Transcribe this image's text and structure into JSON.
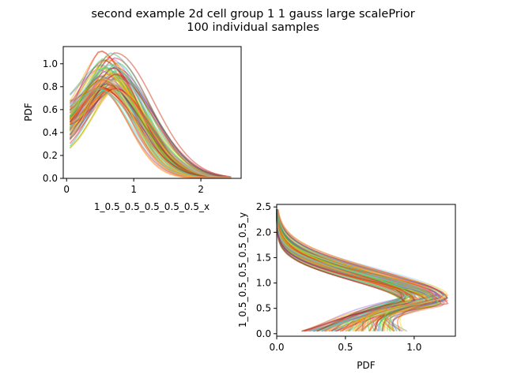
{
  "figure": {
    "title_line1": "second example 2d cell group 1 1 gauss large scalePrior",
    "title_line2": "100 individual samples"
  },
  "chart_data": [
    {
      "type": "line",
      "title": "",
      "xlabel": "1_0.5_0.5_0.5_0.5_0.5_x",
      "ylabel": "PDF",
      "xlim": [
        -0.05,
        2.6
      ],
      "ylim": [
        0.0,
        1.15
      ],
      "xticks": [
        0,
        1,
        2
      ],
      "xtick_labels": [
        "0",
        "1",
        "2"
      ],
      "yticks": [
        0.0,
        0.2,
        0.4,
        0.6,
        0.8,
        1.0
      ],
      "ytick_labels": [
        "0.0",
        "0.2",
        "0.4",
        "0.6",
        "0.8",
        "1.0"
      ],
      "grid": false,
      "n_samples": 100,
      "typical_curve": {
        "x": [
          0.05,
          0.3,
          0.55,
          0.7,
          1.0,
          1.5,
          2.0,
          2.45
        ],
        "y": [
          0.55,
          0.75,
          0.83,
          0.8,
          0.6,
          0.25,
          0.06,
          0.01
        ]
      },
      "envelope": {
        "x_start": 0.05,
        "x_end": 2.45,
        "y_at_start_range": [
          0.22,
          0.87
        ],
        "peak_range": [
          0.78,
          1.12
        ],
        "peak_x_range": [
          0.45,
          0.75
        ],
        "y_at_end": 0.01
      }
    },
    {
      "type": "line",
      "orientation": "horizontal",
      "title": "",
      "xlabel": "PDF",
      "ylabel": "1_0.5_0.5_0.5_0.5_0.5_y",
      "xlim": [
        0.0,
        1.3
      ],
      "ylim": [
        -0.05,
        2.55
      ],
      "xticks": [
        0.0,
        0.5,
        1.0
      ],
      "xtick_labels": [
        "0.0",
        "0.5",
        "1.0"
      ],
      "yticks": [
        0.0,
        0.5,
        1.0,
        1.5,
        2.0,
        2.5
      ],
      "ytick_labels": [
        "0.0",
        "0.5",
        "1.0",
        "1.5",
        "2.0",
        "2.5"
      ],
      "grid": false,
      "n_samples": 100,
      "typical_curve": {
        "y": [
          0.05,
          0.3,
          0.55,
          0.65,
          0.9,
          1.3,
          1.8,
          2.45
        ],
        "pdf": [
          0.4,
          0.9,
          1.1,
          1.12,
          0.8,
          0.3,
          0.05,
          0.0
        ]
      },
      "envelope": {
        "y_start": 0.05,
        "y_end": 2.45,
        "pdf_at_start_range": [
          0.18,
          0.95
        ],
        "peak_range": [
          0.9,
          1.25
        ],
        "peak_y_range": [
          0.55,
          0.75
        ],
        "pdf_at_end": 0.0
      }
    }
  ],
  "palette": [
    "#9370db",
    "#6a5acd",
    "#20b2aa",
    "#3cb371",
    "#7fff00",
    "#32cd32",
    "#ffd700",
    "#ffa500",
    "#ff8c00",
    "#ff4500",
    "#dc143c",
    "#b22222",
    "#cc2200",
    "#8b4513",
    "#ff7f50",
    "#f4a460",
    "#40e0d0",
    "#87cefa",
    "#ffe066",
    "#ff6347"
  ]
}
